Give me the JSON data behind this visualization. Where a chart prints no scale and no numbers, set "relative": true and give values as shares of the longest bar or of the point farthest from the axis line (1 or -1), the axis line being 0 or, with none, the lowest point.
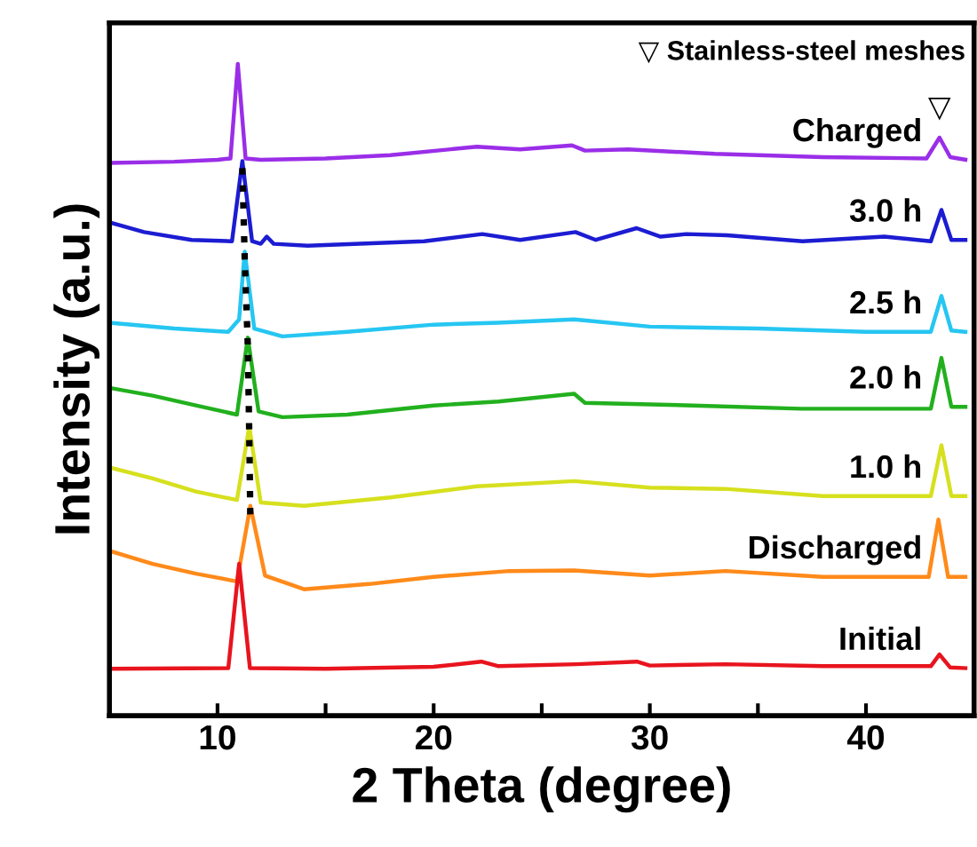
{
  "chart_data": {
    "type": "line",
    "xlabel": "2 Theta (degree)",
    "ylabel": "Intensity (a.u.)",
    "relative": true,
    "tick_labels": "x",
    "grid": false,
    "legend": false,
    "marker": "none",
    "line_style": "solid",
    "xlim": [
      5,
      45
    ],
    "xticks": [
      10,
      {
        "value": 15,
        "label": null
      },
      20,
      {
        "value": 25,
        "label": null
      },
      30,
      {
        "value": 35,
        "label": null
      },
      40
    ],
    "annotations": [
      "▽ Stainless-steel meshes",
      {
        "text": "▽",
        "x": 43.4,
        "y": 0.887
      }
    ],
    "series": [
      {
        "name": "Charged",
        "color": "#9a2ee8",
        "x": [
          5,
          8,
          10,
          10.6,
          10.94,
          11.3,
          12,
          15,
          18,
          22,
          24,
          26.4,
          27,
          29,
          33,
          38,
          42.8,
          43.4,
          43.9,
          44.6
        ],
        "values": [
          0.848,
          0.85,
          0.853,
          0.855,
          1.0,
          0.855,
          0.853,
          0.855,
          0.86,
          0.873,
          0.869,
          0.875,
          0.867,
          0.869,
          0.862,
          0.857,
          0.855,
          0.887,
          0.857,
          0.853
        ]
      },
      {
        "name": "3.0 h",
        "color": "#1c1cd2",
        "x": [
          5,
          6.6,
          8.8,
          10.67,
          11.15,
          11.6,
          12,
          12.28,
          12.6,
          14.17,
          19.56,
          22.25,
          24,
          26.56,
          27.5,
          29.39,
          30.5,
          31.68,
          33.57,
          37.07,
          40.85,
          43,
          43.49,
          43.95,
          44.6
        ],
        "values": [
          0.757,
          0.742,
          0.73,
          0.728,
          0.851,
          0.728,
          0.724,
          0.735,
          0.724,
          0.721,
          0.728,
          0.739,
          0.73,
          0.742,
          0.73,
          0.748,
          0.735,
          0.739,
          0.737,
          0.728,
          0.735,
          0.728,
          0.776,
          0.73,
          0.73
        ]
      },
      {
        "name": "2.5 h",
        "color": "#26c6f2",
        "x": [
          5,
          8,
          10.5,
          11,
          11.26,
          11.7,
          13,
          16,
          20,
          23,
          26.5,
          30,
          35,
          40,
          43,
          43.49,
          43.95,
          44.6
        ],
        "values": [
          0.603,
          0.594,
          0.589,
          0.608,
          0.712,
          0.594,
          0.582,
          0.589,
          0.6,
          0.603,
          0.608,
          0.597,
          0.594,
          0.589,
          0.589,
          0.644,
          0.591,
          0.589
        ]
      },
      {
        "name": "2.0 h",
        "color": "#22b01e",
        "x": [
          5,
          7,
          9,
          10.9,
          11.4,
          11.9,
          13,
          16,
          20,
          23,
          26.5,
          27,
          32,
          37,
          43,
          43.49,
          43.95,
          44.6
        ],
        "values": [
          0.503,
          0.491,
          0.476,
          0.462,
          0.58,
          0.467,
          0.458,
          0.462,
          0.476,
          0.482,
          0.494,
          0.48,
          0.476,
          0.471,
          0.471,
          0.549,
          0.474,
          0.474
        ]
      },
      {
        "name": "1.0 h",
        "color": "#d6e01e",
        "x": [
          5,
          7,
          9,
          10.9,
          11.47,
          12,
          14,
          18,
          22,
          26.5,
          30,
          33.5,
          38,
          43,
          43.49,
          43.95,
          44.6
        ],
        "values": [
          0.381,
          0.364,
          0.344,
          0.331,
          0.444,
          0.327,
          0.322,
          0.335,
          0.352,
          0.36,
          0.35,
          0.348,
          0.337,
          0.337,
          0.415,
          0.337,
          0.337
        ]
      },
      {
        "name": "Discharged",
        "color": "#ff8a1a",
        "x": [
          5,
          7,
          9,
          10.9,
          11.52,
          12.2,
          14,
          17,
          20,
          23.5,
          26.5,
          30,
          33.5,
          38,
          42.9,
          43.35,
          43.8,
          44.6
        ],
        "values": [
          0.253,
          0.233,
          0.218,
          0.206,
          0.322,
          0.215,
          0.194,
          0.202,
          0.213,
          0.222,
          0.223,
          0.215,
          0.222,
          0.213,
          0.213,
          0.301,
          0.213,
          0.213
        ]
      },
      {
        "name": "Initial",
        "color": "#e8141e",
        "x": [
          5,
          10.5,
          11,
          11.5,
          15,
          20,
          22.2,
          23,
          26.6,
          29.4,
          30,
          33.5,
          38,
          43,
          43.4,
          43.9,
          44.6
        ],
        "values": [
          0.072,
          0.073,
          0.233,
          0.073,
          0.072,
          0.075,
          0.083,
          0.076,
          0.079,
          0.083,
          0.077,
          0.079,
          0.076,
          0.076,
          0.094,
          0.074,
          0.073
        ]
      },
      {
        "color": "#000000",
        "line_style": "dotted",
        "x": [
          11.15,
          11.26,
          11.4,
          11.47,
          11.52
        ],
        "values": [
          0.84,
          0.7,
          0.57,
          0.43,
          0.3
        ]
      }
    ]
  }
}
